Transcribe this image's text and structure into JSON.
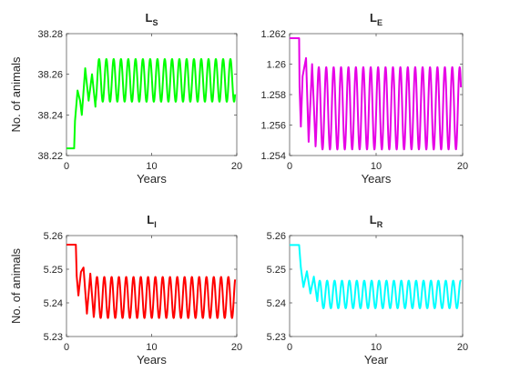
{
  "chart_data": [
    {
      "type": "line",
      "title": "L",
      "title_subscript": "S",
      "xlabel": "Years",
      "ylabel": "No. of animals",
      "xlim": [
        0,
        20
      ],
      "ylim": [
        38.22,
        38.28
      ],
      "xticks": [
        "0",
        "10",
        "20"
      ],
      "yticks": [
        "38.22",
        "38.24",
        "38.26",
        "38.28"
      ],
      "grid": false,
      "color": "#00ff00",
      "series": [
        {
          "initial": 38.2235,
          "jump_at": 0.9,
          "early_points": [
            [
              1.0,
              38.237
            ],
            [
              1.3,
              38.252
            ],
            [
              1.6,
              38.247
            ],
            [
              1.8,
              38.24
            ],
            [
              2.2,
              38.263
            ],
            [
              2.6,
              38.247
            ],
            [
              3.0,
              38.26
            ],
            [
              3.4,
              38.244
            ]
          ],
          "steady_min": 38.2465,
          "steady_max": 38.2675,
          "period": 0.857,
          "end": 19.8
        }
      ]
    },
    {
      "type": "line",
      "title": "L",
      "title_subscript": "E",
      "xlabel": "Years",
      "ylabel": "",
      "xlim": [
        0,
        20
      ],
      "ylim": [
        1.254,
        1.262
      ],
      "xticks": [
        "0",
        "10",
        "20"
      ],
      "yticks": [
        "1.254",
        "1.256",
        "1.258",
        "1.26",
        "1.262"
      ],
      "grid": false,
      "color": "#e600e6",
      "series": [
        {
          "initial": 1.2617,
          "jump_at": 1.1,
          "early_points": [
            [
              1.15,
              1.2585
            ],
            [
              1.3,
              1.2559
            ],
            [
              1.5,
              1.2592
            ],
            [
              1.9,
              1.2604
            ],
            [
              2.2,
              1.2549
            ],
            [
              2.6,
              1.26
            ],
            [
              3.0,
              1.2546
            ]
          ],
          "steady_min": 1.2544,
          "steady_max": 1.2598,
          "period": 0.857,
          "end": 19.8
        }
      ]
    },
    {
      "type": "line",
      "title": "L",
      "title_subscript": "I",
      "xlabel": "Years",
      "ylabel": "No. of animals",
      "xlim": [
        0,
        20
      ],
      "ylim": [
        5.23,
        5.26
      ],
      "xticks": [
        "0",
        "10",
        "20"
      ],
      "yticks": [
        "5.23",
        "5.24",
        "5.25",
        "5.26"
      ],
      "grid": false,
      "color": "#ff0000",
      "series": [
        {
          "initial": 5.2573,
          "jump_at": 1.1,
          "early_points": [
            [
              1.2,
              5.248
            ],
            [
              1.4,
              5.2422
            ],
            [
              1.7,
              5.2492
            ],
            [
              2.0,
              5.2505
            ],
            [
              2.4,
              5.2368
            ],
            [
              2.8,
              5.2487
            ],
            [
              3.2,
              5.2358
            ]
          ],
          "steady_min": 5.2355,
          "steady_max": 5.2477,
          "period": 0.857,
          "end": 19.8
        }
      ]
    },
    {
      "type": "line",
      "title": "L",
      "title_subscript": "R",
      "xlabel": "Year",
      "ylabel": "",
      "xlim": [
        0,
        20
      ],
      "ylim": [
        5.23,
        5.26
      ],
      "xticks": [
        "0",
        "10",
        "20"
      ],
      "yticks": [
        "5.23",
        "5.24",
        "5.25",
        "5.26"
      ],
      "grid": false,
      "color": "#00ffff",
      "series": [
        {
          "initial": 5.2572,
          "jump_at": 1.1,
          "early_points": [
            [
              1.3,
              5.2505
            ],
            [
              1.6,
              5.2447
            ],
            [
              2.0,
              5.2494
            ],
            [
              2.4,
              5.2428
            ],
            [
              2.8,
              5.2478
            ],
            [
              3.2,
              5.2405
            ]
          ],
          "steady_min": 5.2384,
          "steady_max": 5.2466,
          "period": 0.857,
          "end": 19.8
        }
      ]
    }
  ]
}
